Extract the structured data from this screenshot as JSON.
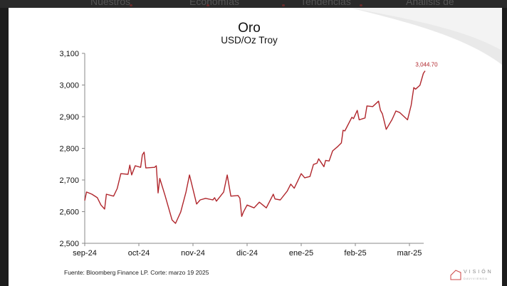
{
  "nav": {
    "items": [
      "Nuestros",
      "Economías",
      "Tendencias",
      "Análisis de"
    ]
  },
  "footer": {
    "source": "Fuente: Bloomberg Finance LP. Corte: marzo 19 2025"
  },
  "logo": {
    "text": "VISIÓN",
    "subtext": "DAVIVIENDA"
  },
  "colors": {
    "line": "#b0262c",
    "label": "#b0262c",
    "axis": "#888888"
  },
  "chart_data": {
    "type": "line",
    "title": "Oro",
    "subtitle": "USD/Oz Troy",
    "xlabel": "",
    "ylabel": "",
    "ylim": [
      2500,
      3100
    ],
    "yticks": [
      2500,
      2600,
      2700,
      2800,
      2900,
      3000,
      3100
    ],
    "ytick_labels": [
      "2,500",
      "2,600",
      "2,700",
      "2,800",
      "2,900",
      "3,000",
      "3,100"
    ],
    "xtick_labels": [
      "sep-24",
      "oct-24",
      "nov-24",
      "dic-24",
      "ene-25",
      "feb-25",
      "mar-25"
    ],
    "grid": false,
    "last_value_label": "3,044.70",
    "series": [
      {
        "x": [
          "2024-09-01",
          "2024-09-02",
          "2024-09-05",
          "2024-09-08",
          "2024-09-10",
          "2024-09-12",
          "2024-09-13",
          "2024-09-17",
          "2024-09-19",
          "2024-09-21",
          "2024-09-25",
          "2024-09-26",
          "2024-09-27",
          "2024-09-29",
          "2024-10-02",
          "2024-10-03",
          "2024-10-04",
          "2024-10-05",
          "2024-10-10",
          "2024-10-11",
          "2024-10-12",
          "2024-10-13",
          "2024-10-16",
          "2024-10-20",
          "2024-10-22",
          "2024-10-25",
          "2024-10-28",
          "2024-10-30",
          "2024-11-03",
          "2024-11-05",
          "2024-11-08",
          "2024-11-12",
          "2024-11-13",
          "2024-11-14",
          "2024-11-18",
          "2024-11-20",
          "2024-11-22",
          "2024-11-26",
          "2024-11-27",
          "2024-11-28",
          "2024-11-29",
          "2024-12-01",
          "2024-12-05",
          "2024-12-08",
          "2024-12-10",
          "2024-12-12",
          "2024-12-16",
          "2024-12-17",
          "2024-12-20",
          "2024-12-24",
          "2024-12-26",
          "2024-12-28",
          "2025-01-01",
          "2025-01-03",
          "2025-01-06",
          "2025-01-08",
          "2025-01-10",
          "2025-01-11",
          "2025-01-14",
          "2025-01-15",
          "2025-01-17",
          "2025-01-19",
          "2025-01-22",
          "2025-01-24",
          "2025-01-25",
          "2025-01-26",
          "2025-01-30",
          "2025-01-31",
          "2025-02-02",
          "2025-02-03",
          "2025-02-06",
          "2025-02-07",
          "2025-02-10",
          "2025-02-13",
          "2025-02-14",
          "2025-02-15",
          "2025-02-17",
          "2025-02-20",
          "2025-02-22",
          "2025-02-24",
          "2025-02-28",
          "2025-03-03",
          "2025-03-06",
          "2025-03-08",
          "2025-03-13",
          "2025-03-17",
          "2025-03-19"
        ],
        "values": [
          2635,
          2662,
          2655,
          2644,
          2621,
          2608,
          2655,
          2649,
          2673,
          2720,
          2718,
          2747,
          2716,
          2745,
          2740,
          2779,
          2788,
          2738,
          2740,
          2745,
          2659,
          2705,
          2651,
          2574,
          2563,
          2599,
          2662,
          2716,
          2624,
          2637,
          2642,
          2637,
          2644,
          2633,
          2662,
          2716,
          2649,
          2651,
          2642,
          2585,
          2599,
          2621,
          2612,
          2630,
          2621,
          2612,
          2655,
          2640,
          2637,
          2665,
          2687,
          2674,
          2720,
          2707,
          2711,
          2749,
          2753,
          2767,
          2742,
          2762,
          2760,
          2792,
          2806,
          2817,
          2857,
          2855,
          2898,
          2894,
          2920,
          2890,
          2896,
          2934,
          2932,
          2949,
          2920,
          2909,
          2860,
          2891,
          2918,
          2913,
          2890,
          2936,
          2992,
          2987,
          2999,
          3037,
          3044.7
        ]
      }
    ]
  }
}
